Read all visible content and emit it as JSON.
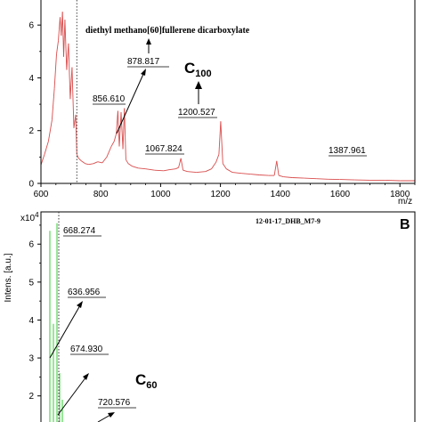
{
  "chart_data": [
    {
      "type": "line",
      "panel_label": "",
      "title": "diethyl methano[60]fullerene dicarboxylate",
      "xlabel": "m/z",
      "ylabel": "",
      "xlim": [
        600,
        1850
      ],
      "ylim": [
        0,
        6.5
      ],
      "x_ticks": [
        "600",
        "800",
        "1000",
        "1200",
        "1400",
        "1600",
        "1800"
      ],
      "y_ticks": [
        "0",
        "2",
        "4",
        "6"
      ],
      "series_color": "#d94c4c",
      "marker_line_x": 720,
      "peaks": [
        {
          "x": 878.817,
          "label": "878.817"
        },
        {
          "x": 856.61,
          "label": "856.610"
        },
        {
          "x": 1067.824,
          "label": "1067.824"
        },
        {
          "x": 1200.527,
          "label": "1200.527"
        },
        {
          "x": 1387.961,
          "label": "1387.961"
        }
      ],
      "annotation": {
        "text": "C",
        "subscript": "100"
      },
      "x": [
        600,
        612,
        625,
        637,
        645,
        652,
        658,
        664,
        668,
        672,
        676,
        680,
        686,
        692,
        698,
        704,
        710,
        716,
        720,
        726,
        735,
        748,
        760,
        775,
        790,
        805,
        820,
        835,
        845,
        852,
        857,
        862,
        868,
        874,
        879,
        884,
        892,
        905,
        925,
        950,
        980,
        1010,
        1030,
        1050,
        1060,
        1068,
        1075,
        1090,
        1120,
        1150,
        1170,
        1185,
        1195,
        1201,
        1208,
        1220,
        1240,
        1270,
        1300,
        1330,
        1360,
        1380,
        1388,
        1395,
        1410,
        1440,
        1480,
        1520,
        1560,
        1600,
        1650,
        1700,
        1750,
        1800,
        1850
      ],
      "y": [
        0.7,
        1.1,
        1.6,
        2.4,
        3.6,
        4.9,
        5.4,
        6.3,
        5.6,
        6.5,
        4.8,
        6.2,
        4.3,
        5.3,
        3.2,
        4.4,
        2.1,
        2.6,
        1.1,
        0.95,
        0.85,
        0.75,
        0.72,
        0.75,
        0.82,
        0.78,
        1.0,
        1.4,
        1.6,
        1.9,
        2.75,
        1.4,
        2.7,
        1.3,
        2.85,
        0.9,
        0.75,
        0.65,
        0.58,
        0.55,
        0.5,
        0.48,
        0.52,
        0.55,
        0.6,
        0.95,
        0.5,
        0.45,
        0.42,
        0.45,
        0.55,
        0.8,
        1.1,
        2.35,
        0.75,
        0.55,
        0.42,
        0.38,
        0.35,
        0.32,
        0.3,
        0.3,
        0.85,
        0.3,
        0.25,
        0.22,
        0.2,
        0.18,
        0.16,
        0.15,
        0.13,
        0.12,
        0.12,
        0.1,
        0.1
      ]
    },
    {
      "type": "line",
      "panel_label": "B",
      "title": "12-01-17_DHB_M7-9",
      "xlabel": "",
      "ylabel": "Intens. [a.u.]",
      "y_multiplier": "x10",
      "y_multiplier_exp": "4",
      "ylim": [
        0,
        6.6
      ],
      "y_ticks": [
        "2",
        "3",
        "4",
        "5",
        "6"
      ],
      "series_color": "#33cc33",
      "marker_line_x": 668.274,
      "peaks": [
        {
          "x": 668.274,
          "label": "668.274"
        },
        {
          "x": 636.956,
          "label": "636.956"
        },
        {
          "x": 674.93,
          "label": "674.930"
        },
        {
          "x": 720.576,
          "label": "720.576"
        }
      ],
      "annotation": {
        "text": "C",
        "subscript": "60"
      }
    }
  ]
}
